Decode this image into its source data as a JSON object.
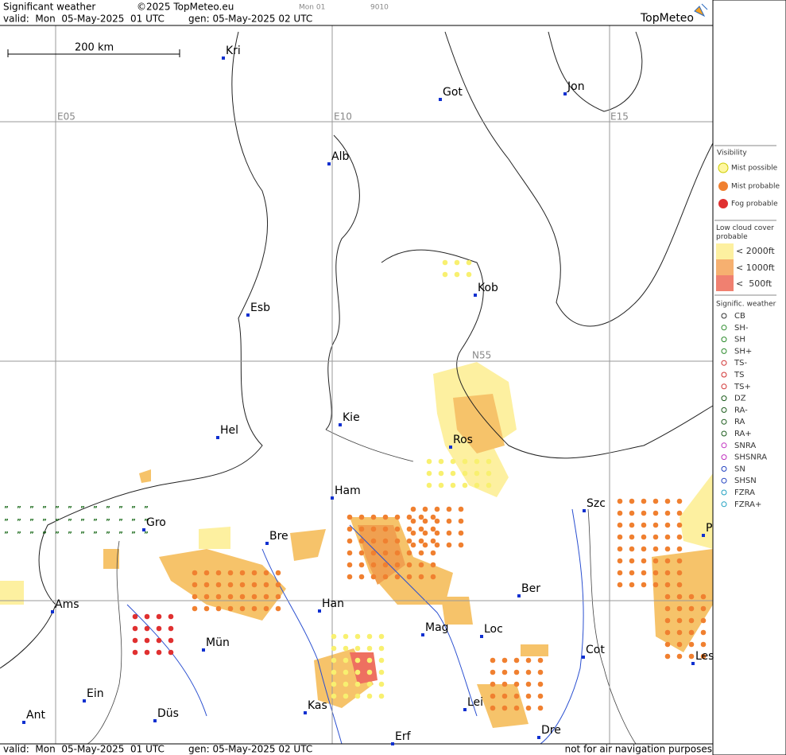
{
  "header": {
    "title": "Significant weather",
    "copyright": "©2025 TopMeteo.eu",
    "run": "Mon 01",
    "code": "9010",
    "valid": "valid:  Mon  05-May-2025  01 UTC",
    "generated": "gen: 05-May-2025 02 UTC",
    "logo": "TopMeteo"
  },
  "map": {
    "scale": "200 km",
    "grid_labels": [
      "E05",
      "E10",
      "E15",
      "N55"
    ],
    "cities": [
      "Kri",
      "Got",
      "Jon",
      "Alb",
      "Kob",
      "Esb",
      "Kie",
      "Hel",
      "Ros",
      "Ham",
      "Szc",
      "Gro",
      "Bre",
      "P",
      "Ber",
      "Ams",
      "Han",
      "Mag",
      "Loc",
      "Cot",
      "Mün",
      "Les",
      "Ein",
      "Kas",
      "Lei",
      "Ant",
      "Düs",
      "Dre",
      "Erf"
    ]
  },
  "legend": {
    "visibility": {
      "title": "Visibility",
      "items": [
        "Mist possible",
        "Mist probable",
        "Fog probable"
      ]
    },
    "low_cloud": {
      "title": "Low cloud cover probable",
      "items": [
        "< 2000ft",
        "< 1000ft",
        "<  500ft"
      ]
    },
    "significant": {
      "title": "Signific. weather",
      "items": [
        "CB",
        "SH-",
        "SH",
        "SH+",
        "TS-",
        "TS",
        "TS+",
        "DZ",
        "RA-",
        "RA",
        "RA+",
        "SNRA",
        "SHSNRA",
        "SN",
        "SHSN",
        "FZRA",
        "FZRA+"
      ]
    }
  },
  "footer": {
    "valid": "valid:  Mon  05-May-2025  01 UTC",
    "generated": "gen: 05-May-2025 02 UTC",
    "note": "not for air navigation purposes"
  }
}
